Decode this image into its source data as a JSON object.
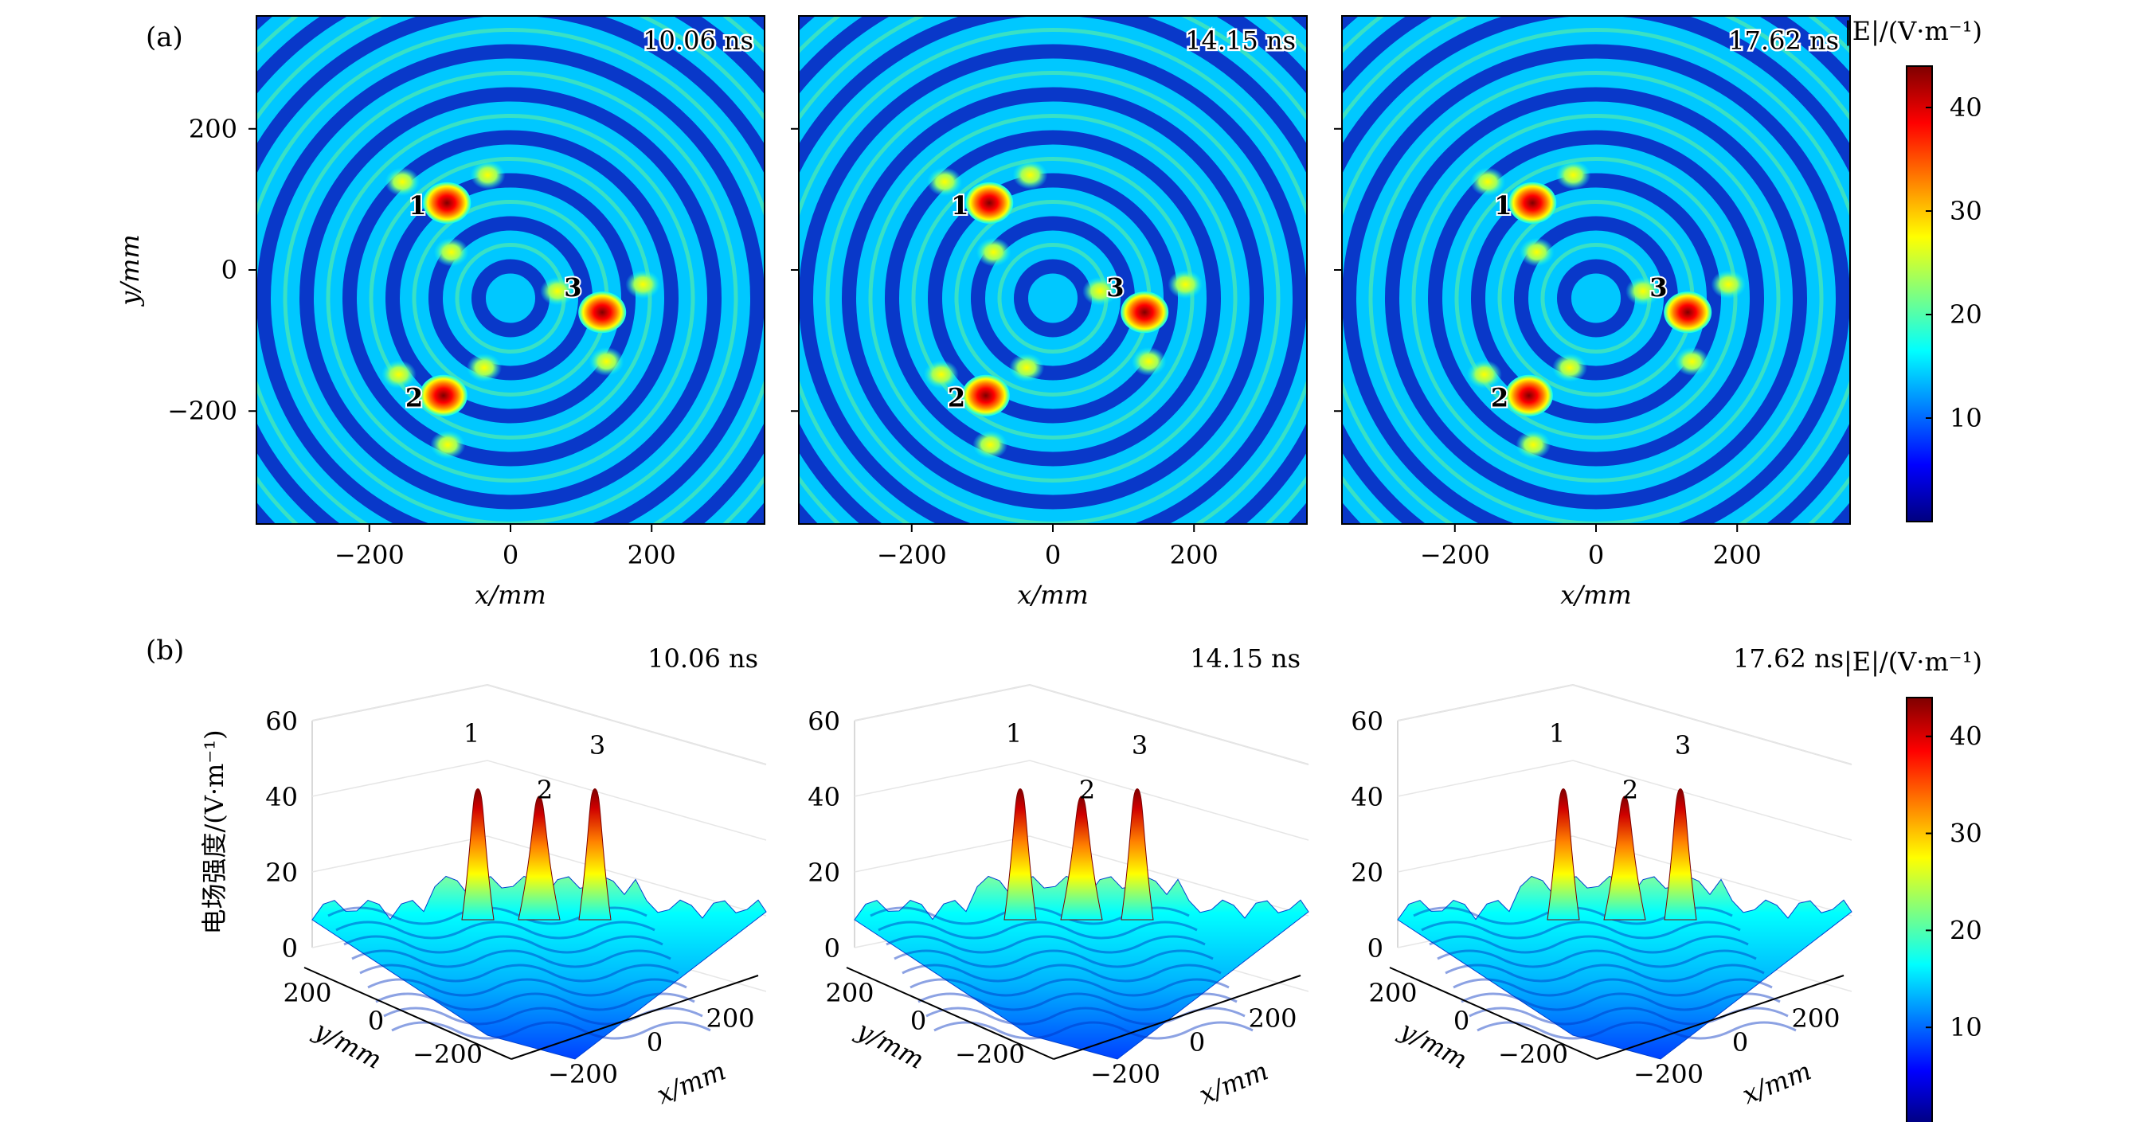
{
  "figure": {
    "panel_a_label": "(a)",
    "panel_b_label": "(b)"
  },
  "colormap": [
    "#00007f",
    "#0000ff",
    "#007fff",
    "#00ffff",
    "#7fff7f",
    "#ffff00",
    "#ff7f00",
    "#ff0000",
    "#7f0000"
  ],
  "chart_data": [
    {
      "type": "heatmap",
      "panel": "a",
      "time_label": "10.06 ns",
      "xlabel": "x/mm",
      "ylabel": "y/mm",
      "xlim": [
        -360,
        360
      ],
      "ylim": [
        -360,
        360
      ],
      "xticks": [
        -200,
        0,
        200
      ],
      "yticks": [
        -200,
        0,
        200
      ],
      "colorbar_title": "|E|/(V·m⁻¹)",
      "colorbar_ticks": [
        10,
        20,
        30,
        40
      ],
      "clim": [
        0,
        44
      ],
      "focal_points": [
        {
          "label": "1",
          "x": -90,
          "y": 95,
          "value": 40
        },
        {
          "label": "2",
          "x": -95,
          "y": -178,
          "value": 40
        },
        {
          "label": "3",
          "x": 130,
          "y": -60,
          "value": 42
        }
      ]
    },
    {
      "type": "heatmap",
      "panel": "a",
      "time_label": "14.15 ns",
      "xlabel": "x/mm",
      "ylabel": "",
      "xlim": [
        -360,
        360
      ],
      "ylim": [
        -360,
        360
      ],
      "xticks": [
        -200,
        0,
        200
      ],
      "yticks": [
        -200,
        0,
        200
      ],
      "clim": [
        0,
        44
      ],
      "focal_points": [
        {
          "label": "1",
          "x": -90,
          "y": 95,
          "value": 40
        },
        {
          "label": "2",
          "x": -95,
          "y": -178,
          "value": 40
        },
        {
          "label": "3",
          "x": 130,
          "y": -60,
          "value": 42
        }
      ]
    },
    {
      "type": "heatmap",
      "panel": "a",
      "time_label": "17.62 ns",
      "xlabel": "x/mm",
      "ylabel": "",
      "xlim": [
        -360,
        360
      ],
      "ylim": [
        -360,
        360
      ],
      "xticks": [
        -200,
        0,
        200
      ],
      "yticks": [
        -200,
        0,
        200
      ],
      "clim": [
        0,
        44
      ],
      "focal_points": [
        {
          "label": "1",
          "x": -90,
          "y": 95,
          "value": 40
        },
        {
          "label": "2",
          "x": -95,
          "y": -178,
          "value": 40
        },
        {
          "label": "3",
          "x": 130,
          "y": -60,
          "value": 42
        }
      ]
    },
    {
      "type": "surface",
      "panel": "b",
      "time_label": "10.06 ns",
      "zlabel": "电场强度/(V·m⁻¹)",
      "xlabel": "x/mm",
      "ylabel": "y/mm",
      "zlim": [
        0,
        60
      ],
      "zticks": [
        0,
        20,
        40,
        60
      ],
      "xticks": [
        -200,
        0,
        200
      ],
      "yticks": [
        200,
        0,
        -200
      ],
      "colorbar_title": "|E|/(V·m⁻¹)",
      "colorbar_ticks": [
        10,
        20,
        30,
        40
      ],
      "peaks": [
        {
          "label": "1",
          "value": 42
        },
        {
          "label": "2",
          "value": 40
        },
        {
          "label": "3",
          "value": 42
        }
      ]
    },
    {
      "type": "surface",
      "panel": "b",
      "time_label": "14.15 ns",
      "zlabel": "",
      "xlabel": "x/mm",
      "ylabel": "y/mm",
      "zlim": [
        0,
        60
      ],
      "zticks": [
        0,
        20,
        40,
        60
      ],
      "xticks": [
        -200,
        0,
        200
      ],
      "yticks": [
        200,
        0,
        -200
      ],
      "peaks": [
        {
          "label": "1",
          "value": 42
        },
        {
          "label": "2",
          "value": 40
        },
        {
          "label": "3",
          "value": 42
        }
      ]
    },
    {
      "type": "surface",
      "panel": "b",
      "time_label": "17.62 ns",
      "zlabel": "",
      "xlabel": "x/mm",
      "ylabel": "y/mm",
      "zlim": [
        0,
        60
      ],
      "zticks": [
        0,
        20,
        40,
        60
      ],
      "xticks": [
        -200,
        0,
        200
      ],
      "yticks": [
        200,
        0,
        -200
      ],
      "peaks": [
        {
          "label": "1",
          "value": 42
        },
        {
          "label": "2",
          "value": 40
        },
        {
          "label": "3",
          "value": 42
        }
      ]
    }
  ]
}
